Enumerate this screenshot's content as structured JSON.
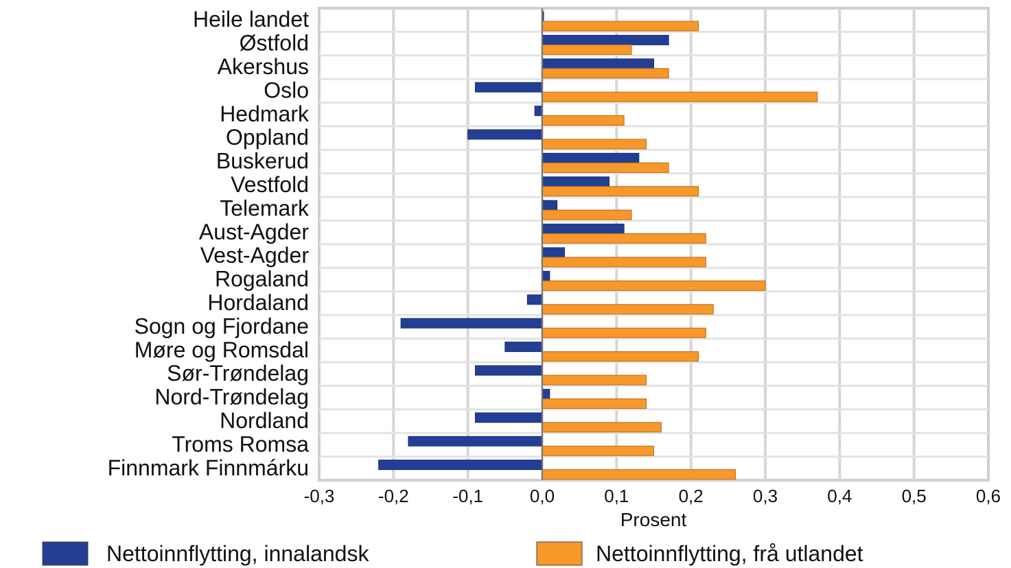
{
  "chart_data": {
    "type": "bar",
    "orientation": "horizontal",
    "categories": [
      "Heile landet",
      "Østfold",
      "Akershus",
      "Oslo",
      "Hedmark",
      "Oppland",
      "Buskerud",
      "Vestfold",
      "Telemark",
      "Aust-Agder",
      "Vest-Agder",
      "Rogaland",
      "Hordaland",
      "Sogn og Fjordane",
      "Møre og Romsdal",
      "Sør-Trøndelag",
      "Nord-Trøndelag",
      "Nordland",
      "Troms Romsa",
      "Finnmark Finnmárku"
    ],
    "series": [
      {
        "name": "Nettoinnflytting, innalandsk",
        "color": "#233f95",
        "values": [
          0.0,
          0.17,
          0.15,
          -0.09,
          -0.01,
          -0.1,
          0.13,
          0.09,
          0.02,
          0.11,
          0.03,
          0.01,
          -0.02,
          -0.19,
          -0.05,
          -0.09,
          0.01,
          -0.09,
          -0.18,
          -0.22
        ]
      },
      {
        "name": "Nettoinnflytting, frå utlandet",
        "color": "#f7982b",
        "values": [
          0.21,
          0.12,
          0.17,
          0.37,
          0.11,
          0.14,
          0.17,
          0.21,
          0.12,
          0.22,
          0.22,
          0.3,
          0.23,
          0.22,
          0.21,
          0.14,
          0.14,
          0.16,
          0.15,
          0.26
        ]
      }
    ],
    "xlim": [
      -0.3,
      0.6
    ],
    "xticks": [
      -0.3,
      -0.2,
      -0.1,
      0.0,
      0.1,
      0.2,
      0.3,
      0.4,
      0.5,
      0.6
    ],
    "xtick_labels": [
      "-0,3",
      "-0,2",
      "-0,1",
      "0,0",
      "0,1",
      "0,2",
      "0,3",
      "0,4",
      "0,5",
      "0,6"
    ],
    "xlabel": "Prosent",
    "grid": true,
    "legend_position": "bottom"
  }
}
